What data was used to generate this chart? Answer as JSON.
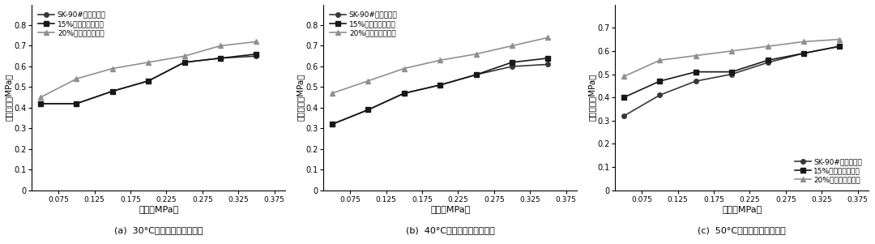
{
  "x": [
    0.05,
    0.1,
    0.15,
    0.2,
    0.25,
    0.3,
    0.35
  ],
  "chart_a": {
    "sk90": [
      0.42,
      0.42,
      0.48,
      0.53,
      0.62,
      0.64,
      0.65
    ],
    "r15": [
      0.42,
      0.42,
      0.48,
      0.53,
      0.62,
      0.64,
      0.66
    ],
    "r20": [
      0.45,
      0.54,
      0.59,
      0.62,
      0.65,
      0.7,
      0.72
    ],
    "ylim": [
      0,
      0.9
    ],
    "yticks": [
      0,
      0.1,
      0.2,
      0.3,
      0.4,
      0.5,
      0.6,
      0.7,
      0.8
    ],
    "title": "(a)  30°C氥青混合料静态模量",
    "legend_loc": "upper left"
  },
  "chart_b": {
    "sk90": [
      0.32,
      0.39,
      0.47,
      0.51,
      0.56,
      0.6,
      0.61
    ],
    "r15": [
      0.32,
      0.39,
      0.47,
      0.51,
      0.56,
      0.62,
      0.64
    ],
    "r20": [
      0.47,
      0.53,
      0.59,
      0.63,
      0.66,
      0.7,
      0.74
    ],
    "ylim": [
      0,
      0.9
    ],
    "yticks": [
      0,
      0.1,
      0.2,
      0.3,
      0.4,
      0.5,
      0.6,
      0.7,
      0.8
    ],
    "title": "(b)  40°C氥青混合料静态模量",
    "legend_loc": "upper left"
  },
  "chart_c": {
    "sk90": [
      0.32,
      0.41,
      0.47,
      0.5,
      0.55,
      0.59,
      0.62
    ],
    "r15": [
      0.4,
      0.47,
      0.51,
      0.51,
      0.56,
      0.59,
      0.62
    ],
    "r20": [
      0.49,
      0.56,
      0.58,
      0.6,
      0.62,
      0.64,
      0.65
    ],
    "ylim": [
      0,
      0.8
    ],
    "yticks": [
      0,
      0.1,
      0.2,
      0.3,
      0.4,
      0.5,
      0.6,
      0.7
    ],
    "title": "(c)  50°C氥青混合料静态模量",
    "legend_loc": "lower right"
  },
  "legend_labels": [
    "SK-90#氥青混合料",
    "15%橡胶氥青混合料",
    "20%橡胶氥青混合料"
  ],
  "xlabel": "应力（MPa）",
  "ylabel": "回弹模量（MPa）",
  "xticks": [
    0.075,
    0.125,
    0.175,
    0.225,
    0.275,
    0.325,
    0.375
  ],
  "xtick_labels": [
    "0.075",
    "0.125",
    "0.175",
    "0.225",
    "0.275",
    "0.325",
    "0.375"
  ],
  "colors": {
    "sk90": "#383838",
    "r15": "#181818",
    "r20": "#909090"
  },
  "line_width": 1.2,
  "marker_size": 4
}
